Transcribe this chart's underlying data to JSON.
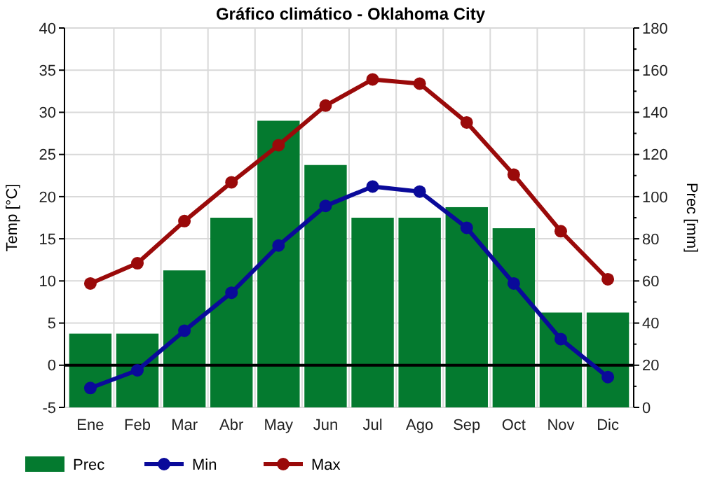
{
  "chart_data": {
    "type": "bar",
    "title": "Gráfico climático - Oklahoma City",
    "ylabel": "Temp [°C]",
    "y2label": "Prec [mm]",
    "categories": [
      "Ene",
      "Feb",
      "Mar",
      "Abr",
      "May",
      "Jun",
      "Jul",
      "Ago",
      "Sep",
      "Oct",
      "Nov",
      "Dic"
    ],
    "series": [
      {
        "name": "Prec",
        "axis": "y2",
        "color": "#047a2f",
        "values": [
          35,
          35,
          65,
          90,
          136,
          115,
          90,
          90,
          95,
          85,
          45,
          45
        ]
      },
      {
        "name": "Min",
        "type": "line",
        "color": "#0a0a9a",
        "values": [
          -2.7,
          -0.6,
          4.1,
          8.6,
          14.2,
          18.9,
          21.2,
          20.6,
          16.3,
          9.7,
          3.1,
          -1.4
        ]
      },
      {
        "name": "Max",
        "type": "line",
        "color": "#9a0a0a",
        "values": [
          9.7,
          12.1,
          17.1,
          21.7,
          26.1,
          30.8,
          33.9,
          33.4,
          28.8,
          22.6,
          15.9,
          10.2
        ]
      }
    ],
    "ylim": [
      -5,
      40
    ],
    "yticks": [
      -5,
      0,
      5,
      10,
      15,
      20,
      25,
      30,
      35,
      40
    ],
    "y2lim": [
      0,
      180
    ],
    "y2ticks": [
      0,
      20,
      40,
      60,
      80,
      100,
      120,
      140,
      160,
      180
    ],
    "ref_lines": [
      {
        "axis": "y",
        "value": 0,
        "color": "#000000"
      }
    ],
    "grid": true,
    "legend": "bottom",
    "marker": "circle",
    "line_style": "solid"
  }
}
